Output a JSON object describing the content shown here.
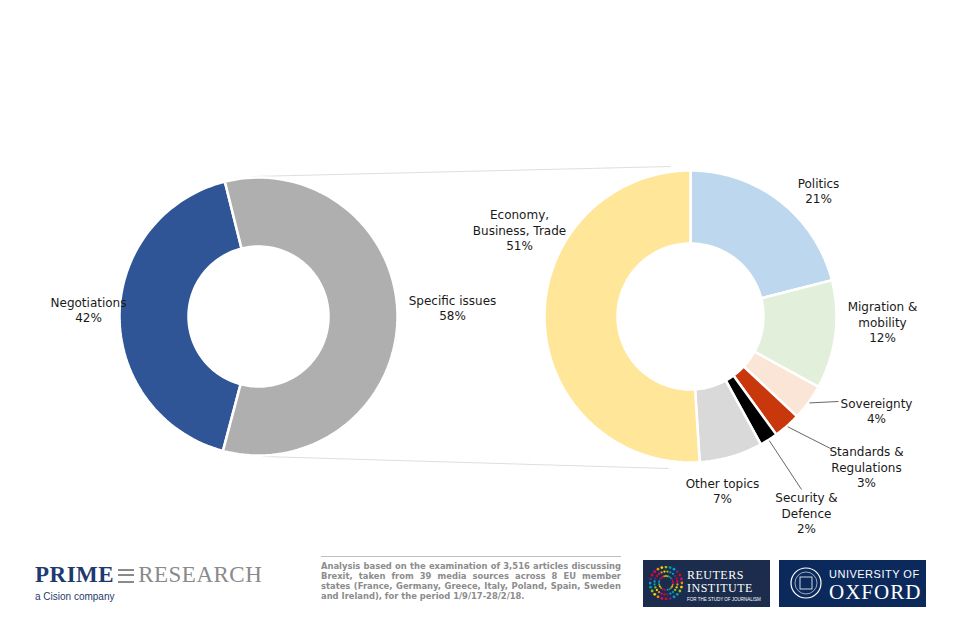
{
  "chart_data": [
    {
      "type": "pie",
      "categories": [
        "Negotiations",
        "Specific issues"
      ],
      "values": [
        42,
        58
      ],
      "value_labels": [
        "42%",
        "58%"
      ],
      "colors": [
        "#2f5597",
        "#afafaf"
      ],
      "data_labels": true
    },
    {
      "type": "pie",
      "categories": [
        "Politics",
        "Migration & mobility",
        "Sovereignty",
        "Standards & Regulations",
        "Security & Defence",
        "Other topics",
        "Economy, Business, Trade"
      ],
      "values": [
        21,
        12,
        4,
        3,
        2,
        7,
        51
      ],
      "value_labels": [
        "21%",
        "12%",
        "4%",
        "3%",
        "2%",
        "7%",
        "51%"
      ],
      "colors": [
        "#bdd7ee",
        "#e2efda",
        "#fbe5d6",
        "#c9370c",
        "#000000",
        "#d9d9d9",
        "#ffe699"
      ],
      "data_labels": true
    }
  ],
  "footer": {
    "logo_left": [
      "PRIME",
      "RESEARCH"
    ],
    "logo_left_sub": "a Cision company",
    "note": "Analysis based on the examination of 3,516 articles discussing Brexit, taken from 39 media sources across 8 EU member states (France, Germany, Greece, Italy, Poland, Spain, Sweden and Ireland), for the period 1/9/17-28/2/18.",
    "logo_middle": [
      "REUTERS",
      "INSTITUTE"
    ],
    "logo_middle_sub": "FOR THE STUDY OF JOURNALISM",
    "logo_right": [
      "UNIVERSITY OF",
      "OXFORD"
    ]
  }
}
